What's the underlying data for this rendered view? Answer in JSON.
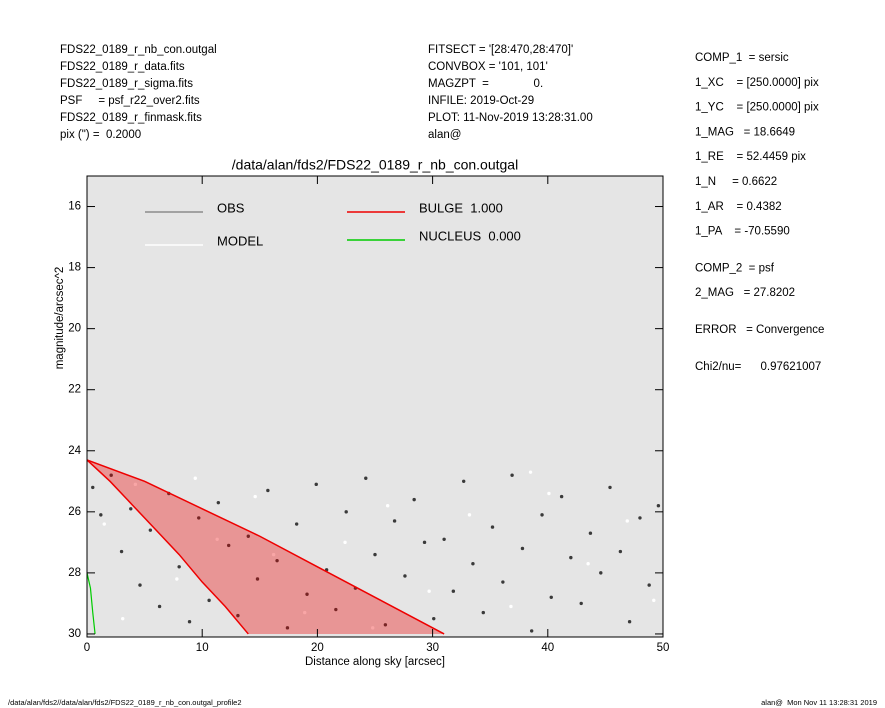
{
  "header": {
    "left": [
      "FDS22_0189_r_nb_con.outgal",
      "FDS22_0189_r_data.fits",
      "FDS22_0189_r_sigma.fits",
      "PSF     = psf_r22_over2.fits",
      "FDS22_0189_r_finmask.fits",
      "pix (\") =  0.2000"
    ],
    "middle": [
      "FITSECT = '[28:470,28:470]'",
      "CONVBOX = '101, 101'",
      "MAGZPT  =              0.",
      "INFILE: 2019-Oct-29",
      "PLOT: 11-Nov-2019 13:28:31.00",
      "alan@"
    ]
  },
  "right_panel": [
    [
      "COMP_1  = sersic",
      "1_XC    = [250.0000] pix",
      "1_YC    = [250.0000] pix",
      "1_MAG   = 18.6649",
      "1_RE    = 52.4459 pix",
      "1_N     = 0.6622",
      "1_AR    = 0.4382",
      "1_PA    = -70.5590"
    ],
    [
      "COMP_2  = psf",
      "2_MAG   = 27.8202"
    ],
    [
      "ERROR   = Convergence"
    ],
    [
      "Chi2/nu=      0.97621007"
    ]
  ],
  "footer": {
    "left": "/data/alan/fds2//data/alan/fds2/FDS22_0189_r_nb_con.outgal_profile2",
    "right": "alan@  Mon Nov 11 13:28:31 2019"
  },
  "chart_data": {
    "type": "scatter",
    "title": "/data/alan/fds2/FDS22_0189_r_nb_con.outgal",
    "x_label": "Distance along sky [arcsec]",
    "y_label": "magnitude/arcsec^2",
    "xlim": [
      0,
      50
    ],
    "xticks": [
      0,
      10,
      20,
      30,
      40,
      50
    ],
    "ylim": [
      30.1,
      15
    ],
    "yticks": [
      16,
      18,
      20,
      22,
      24,
      26,
      28,
      30
    ],
    "background": "#e5e5e5",
    "series": [
      {
        "name": "OBS",
        "color": "#3a3a3a",
        "legend_color": "#8c8c8c",
        "kind": "points",
        "x": [
          0.5,
          1.2,
          2.1,
          3.0,
          3.8,
          4.6,
          5.5,
          6.3,
          7.1,
          8.0,
          8.9,
          9.7,
          10.6,
          11.4,
          12.3,
          13.1,
          14.0,
          14.8,
          15.7,
          16.5,
          17.4,
          18.2,
          19.1,
          19.9,
          20.8,
          21.6,
          22.5,
          23.3,
          24.2,
          25.0,
          25.9,
          26.7,
          27.6,
          28.4,
          29.3,
          30.1,
          31.0,
          31.8,
          32.7,
          33.5,
          34.4,
          35.2,
          36.1,
          36.9,
          37.8,
          38.6,
          39.5,
          40.3,
          41.2,
          42.0,
          42.9,
          43.7,
          44.6,
          45.4,
          46.3,
          47.1,
          48.0,
          48.8,
          49.6
        ],
        "values": [
          25.2,
          26.1,
          24.8,
          27.3,
          25.9,
          28.4,
          26.6,
          29.1,
          25.4,
          27.8,
          29.6,
          26.2,
          28.9,
          25.7,
          27.1,
          29.4,
          26.8,
          28.2,
          25.3,
          27.6,
          29.8,
          26.4,
          28.7,
          25.1,
          27.9,
          29.2,
          26.0,
          28.5,
          24.9,
          27.4,
          29.7,
          26.3,
          28.1,
          25.6,
          27.0,
          29.5,
          26.9,
          28.6,
          25.0,
          27.7,
          29.3,
          26.5,
          28.3,
          24.8,
          27.2,
          29.9,
          26.1,
          28.8,
          25.5,
          27.5,
          29.0,
          26.7,
          28.0,
          25.2,
          27.3,
          29.6,
          26.2,
          28.4,
          25.8
        ]
      },
      {
        "name": "MODEL",
        "color": "#ffffff",
        "legend_color": "#ffffff",
        "kind": "points",
        "x": [
          1.5,
          4.2,
          7.8,
          11.3,
          14.6,
          18.9,
          22.4,
          26.1,
          29.7,
          33.2,
          36.8,
          40.1,
          43.5,
          46.9,
          49.2,
          3.1,
          9.4,
          16.2,
          24.8,
          38.5
        ],
        "values": [
          26.4,
          25.1,
          28.2,
          26.9,
          25.5,
          29.3,
          27.0,
          25.8,
          28.6,
          26.1,
          29.1,
          25.4,
          27.7,
          26.3,
          28.9,
          29.5,
          24.9,
          27.4,
          29.8,
          24.7
        ]
      },
      {
        "name": "BULGE  1.000",
        "color": "#ee0000",
        "legend_color": "#ee0000",
        "kind": "band",
        "lines": [
          {
            "x": [
              0,
              5,
              10,
              15,
              20,
              25,
              31
            ],
            "values": [
              24.3,
              25.0,
              25.9,
              26.8,
              27.8,
              28.8,
              30.0
            ]
          },
          {
            "x": [
              0,
              2,
              4,
              6,
              8,
              10,
              12,
              14
            ],
            "values": [
              24.3,
              25.0,
              25.8,
              26.6,
              27.4,
              28.3,
              29.1,
              30.0
            ]
          }
        ]
      },
      {
        "name": "NUCLEUS  0.000",
        "color": "#00cc00",
        "legend_color": "#00cc00",
        "kind": "line",
        "x": [
          0,
          0.3,
          0.5,
          0.7
        ],
        "values": [
          28.0,
          28.5,
          29.3,
          30.0
        ]
      }
    ]
  }
}
